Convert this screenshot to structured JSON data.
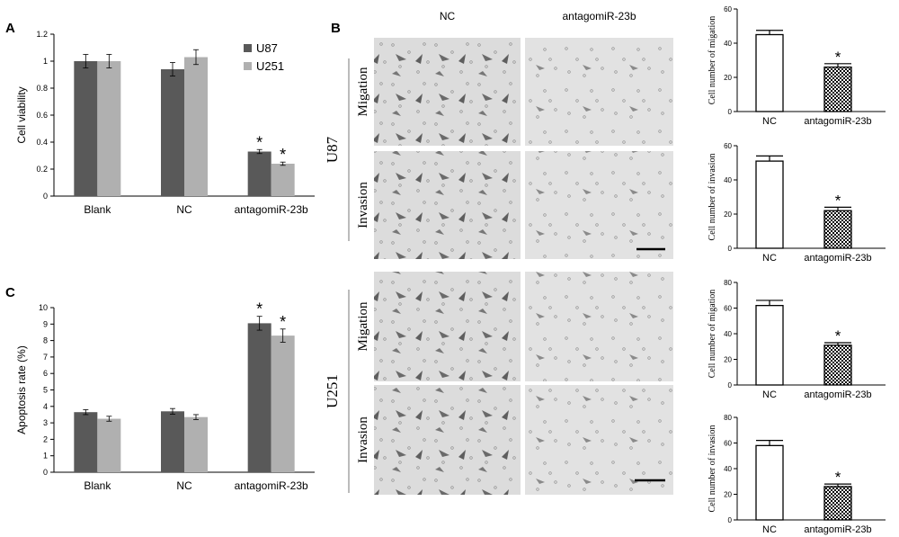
{
  "panels": {
    "a": "A",
    "b": "B",
    "c": "C"
  },
  "colors": {
    "u87": "#595959",
    "u251": "#b0b0b0",
    "micro_bg": "#dadada",
    "cell": "#6e6e6e"
  },
  "micrographs": {
    "col_headers": [
      "NC",
      "antagomiR-23b"
    ],
    "groups": [
      "U87",
      "U251"
    ],
    "rows": [
      "Migation",
      "Invasion"
    ]
  },
  "chart_data": [
    {
      "id": "cell-viability",
      "type": "bar",
      "title": "",
      "xlabel": "",
      "ylabel": "Cell viability",
      "ylim": [
        0,
        1.2
      ],
      "yticks": [
        "0",
        "0.2",
        "0.4",
        "0.6",
        "0.8",
        "1",
        "1.2"
      ],
      "categories": [
        "Blank",
        "NC",
        "antagomiR-23b"
      ],
      "series": [
        {
          "name": "U87",
          "values": [
            1.0,
            0.94,
            0.33
          ],
          "errors": [
            0.05,
            0.05,
            0.015
          ]
        },
        {
          "name": "U251",
          "values": [
            1.0,
            1.03,
            0.24
          ],
          "errors": [
            0.05,
            0.055,
            0.012
          ]
        }
      ],
      "annotations": [
        "*",
        "*"
      ],
      "legend": "top-right",
      "grid": false
    },
    {
      "id": "apoptosis-rate",
      "type": "bar",
      "title": "",
      "xlabel": "",
      "ylabel": "Apoptosis rate (%)",
      "ylim": [
        0,
        10
      ],
      "yticks": [
        "0",
        "1",
        "2",
        "3",
        "4",
        "5",
        "6",
        "7",
        "8",
        "9",
        "10"
      ],
      "categories": [
        "Blank",
        "NC",
        "antagomiR-23b"
      ],
      "series": [
        {
          "name": "U87",
          "values": [
            3.65,
            3.7,
            9.05
          ],
          "errors": [
            0.15,
            0.17,
            0.42
          ]
        },
        {
          "name": "U251",
          "values": [
            3.25,
            3.35,
            8.3
          ],
          "errors": [
            0.15,
            0.15,
            0.4
          ]
        }
      ],
      "annotations": [
        "*",
        "*"
      ],
      "legend": "none",
      "grid": false
    },
    {
      "id": "u87-migration",
      "type": "bar",
      "title": "",
      "xlabel": "",
      "ylabel": "Cell number of migation",
      "ylim": [
        0,
        60
      ],
      "yticks": [
        "0",
        "20",
        "40",
        "60"
      ],
      "categories": [
        "NC",
        "antagomiR-23b"
      ],
      "values": [
        45,
        26
      ],
      "errors": [
        2.5,
        2
      ],
      "fills": [
        "plain",
        "checkered"
      ],
      "annotations": [
        "",
        "*"
      ]
    },
    {
      "id": "u87-invasion",
      "type": "bar",
      "title": "",
      "xlabel": "",
      "ylabel": "Cell number of invasion",
      "ylim": [
        0,
        60
      ],
      "yticks": [
        "0",
        "20",
        "40",
        "60"
      ],
      "categories": [
        "NC",
        "antagomiR-23b"
      ],
      "values": [
        51,
        22
      ],
      "errors": [
        3,
        2
      ],
      "fills": [
        "plain",
        "checkered"
      ],
      "annotations": [
        "",
        "*"
      ]
    },
    {
      "id": "u251-migration",
      "type": "bar",
      "title": "",
      "xlabel": "",
      "ylabel": "Cell number of migation",
      "ylim": [
        0,
        80
      ],
      "yticks": [
        "0",
        "20",
        "40",
        "60",
        "80"
      ],
      "categories": [
        "NC",
        "antagomiR-23b"
      ],
      "values": [
        62,
        31
      ],
      "errors": [
        4,
        2
      ],
      "fills": [
        "plain",
        "checkered"
      ],
      "annotations": [
        "",
        "*"
      ]
    },
    {
      "id": "u251-invasion",
      "type": "bar",
      "title": "",
      "xlabel": "",
      "ylabel": "Cell number of invasion",
      "ylim": [
        0,
        80
      ],
      "yticks": [
        "0",
        "20",
        "40",
        "60",
        "80"
      ],
      "categories": [
        "NC",
        "antagomiR-23b"
      ],
      "values": [
        58,
        26
      ],
      "errors": [
        4,
        2
      ],
      "fills": [
        "plain",
        "checkered"
      ],
      "annotations": [
        "",
        "*"
      ]
    }
  ]
}
